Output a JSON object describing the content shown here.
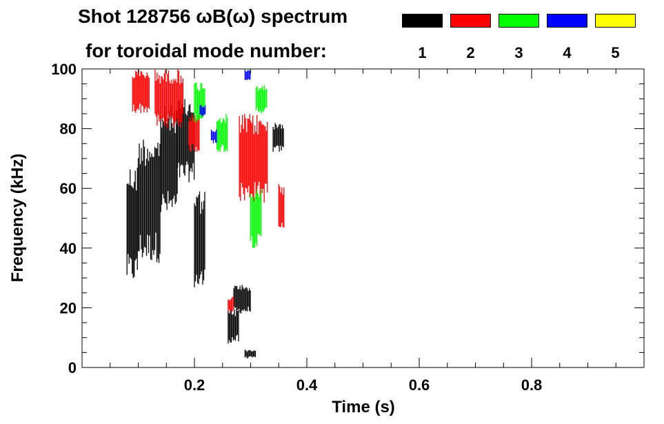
{
  "header": {
    "title_line1": "Shot 128756 ωB(ω) spectrum",
    "title_line2": "for toroidal mode number:"
  },
  "legend": [
    {
      "mode": "1",
      "color": "#000000"
    },
    {
      "mode": "2",
      "color": "#ff0000"
    },
    {
      "mode": "3",
      "color": "#00ff00"
    },
    {
      "mode": "4",
      "color": "#0000ff"
    },
    {
      "mode": "5",
      "color": "#ffff00"
    }
  ],
  "chart_data": {
    "type": "heatmap",
    "title": "Shot 128756 ωB(ω) spectrum",
    "subtitle": "for toroidal mode number:",
    "xlabel": "Time (s)",
    "ylabel": "Frequency (kHz)",
    "xlim": [
      0.0,
      1.0
    ],
    "ylim": [
      0,
      100
    ],
    "xticks": [
      0.2,
      0.4,
      0.6,
      0.8
    ],
    "yticks": [
      0,
      20,
      40,
      60,
      80,
      100
    ],
    "grid": false,
    "legend_position": "top-right",
    "series": [
      {
        "mode": 1,
        "color": "#000000",
        "regions": [
          {
            "t": [
              0.08,
              0.1
            ],
            "f": [
              28,
              68
            ]
          },
          {
            "t": [
              0.1,
              0.14
            ],
            "f": [
              35,
              78
            ]
          },
          {
            "t": [
              0.14,
              0.17
            ],
            "f": [
              50,
              88
            ]
          },
          {
            "t": [
              0.17,
              0.2
            ],
            "f": [
              62,
              90
            ]
          },
          {
            "t": [
              0.2,
              0.22
            ],
            "f": [
              25,
              60
            ]
          },
          {
            "t": [
              0.26,
              0.28
            ],
            "f": [
              8,
              20
            ]
          },
          {
            "t": [
              0.27,
              0.3
            ],
            "f": [
              18,
              28
            ]
          },
          {
            "t": [
              0.29,
              0.31
            ],
            "f": [
              3,
              6
            ]
          },
          {
            "t": [
              0.34,
              0.36
            ],
            "f": [
              72,
              82
            ]
          }
        ]
      },
      {
        "mode": 2,
        "color": "#ff0000",
        "regions": [
          {
            "t": [
              0.09,
              0.12
            ],
            "f": [
              85,
              100
            ]
          },
          {
            "t": [
              0.13,
              0.18
            ],
            "f": [
              80,
              100
            ]
          },
          {
            "t": [
              0.19,
              0.21
            ],
            "f": [
              72,
              85
            ]
          },
          {
            "t": [
              0.28,
              0.33
            ],
            "f": [
              55,
              85
            ]
          },
          {
            "t": [
              0.35,
              0.36
            ],
            "f": [
              45,
              62
            ]
          },
          {
            "t": [
              0.26,
              0.27
            ],
            "f": [
              18,
              24
            ]
          }
        ]
      },
      {
        "mode": 3,
        "color": "#00ff00",
        "regions": [
          {
            "t": [
              0.2,
              0.22
            ],
            "f": [
              82,
              96
            ]
          },
          {
            "t": [
              0.24,
              0.26
            ],
            "f": [
              72,
              85
            ]
          },
          {
            "t": [
              0.3,
              0.32
            ],
            "f": [
              40,
              60
            ]
          },
          {
            "t": [
              0.31,
              0.33
            ],
            "f": [
              85,
              95
            ]
          }
        ]
      },
      {
        "mode": 4,
        "color": "#0000ff",
        "regions": [
          {
            "t": [
              0.21,
              0.22
            ],
            "f": [
              84,
              88
            ]
          },
          {
            "t": [
              0.23,
              0.24
            ],
            "f": [
              75,
              80
            ]
          },
          {
            "t": [
              0.29,
              0.3
            ],
            "f": [
              96,
              100
            ]
          }
        ]
      },
      {
        "mode": 5,
        "color": "#ffff00",
        "regions": []
      }
    ]
  }
}
